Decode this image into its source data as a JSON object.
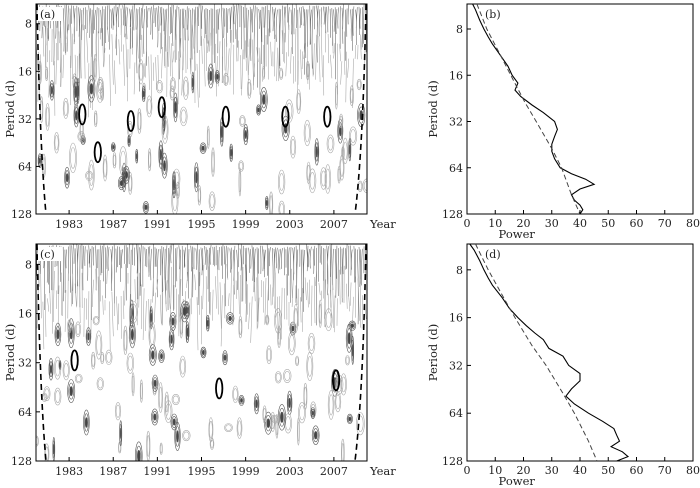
{
  "chart_data": [
    {
      "panel": "(a)",
      "type": "heatmap",
      "description": "wavelet power spectrum contour",
      "xlabel": "Year",
      "ylabel": "Period (d)",
      "y_scale": "log2",
      "y_reversed": true,
      "xlim": [
        1980,
        2010
      ],
      "ylim": [
        6,
        128
      ],
      "x_ticks": [
        1983,
        1987,
        1991,
        1995,
        1999,
        2003,
        2007
      ],
      "y_ticks": [
        8,
        16,
        32,
        64,
        128
      ],
      "cone_of_influence": true,
      "significant_regions_years": [
        1984.2,
        1985.6,
        1988.6,
        1991.4,
        1997.2,
        2002.6,
        2006.4
      ],
      "significant_regions_periods": [
        30,
        52,
        33,
        27,
        31,
        31,
        31
      ]
    },
    {
      "panel": "(b)",
      "type": "line",
      "description": "global wavelet spectrum",
      "xlabel": "Power",
      "ylabel": "Period (d)",
      "y_scale": "log2",
      "y_reversed": true,
      "xlim": [
        0,
        80
      ],
      "ylim": [
        5.5,
        128
      ],
      "x_ticks": [
        0,
        10,
        20,
        30,
        40,
        50,
        60,
        70,
        80
      ],
      "y_ticks": [
        8,
        16,
        32,
        64,
        128
      ],
      "series": [
        {
          "style": "solid",
          "period": [
            5.5,
            6,
            7,
            8,
            9,
            10,
            12,
            14,
            16,
            18,
            20,
            22,
            25,
            28,
            32,
            36,
            40,
            45,
            50,
            56,
            64,
            70,
            76,
            82,
            88,
            96,
            104,
            112,
            120,
            128
          ],
          "power": [
            2,
            3,
            4.5,
            6,
            7.5,
            9,
            12,
            14.5,
            16,
            18,
            17,
            19,
            23,
            27,
            31,
            32,
            31,
            30,
            30,
            31,
            33,
            37,
            42,
            45,
            40,
            37,
            38,
            40,
            41,
            40
          ]
        },
        {
          "style": "dashed",
          "period": [
            5.5,
            8,
            12,
            16,
            24,
            32,
            48,
            64,
            96,
            128
          ],
          "power": [
            3.5,
            7,
            12,
            15.5,
            20.5,
            24.5,
            30,
            33.5,
            37,
            40
          ]
        }
      ]
    },
    {
      "panel": "(c)",
      "type": "heatmap",
      "description": "wavelet power spectrum contour",
      "xlabel": "Year",
      "ylabel": "Period (d)",
      "y_scale": "log2",
      "y_reversed": true,
      "xlim": [
        1980,
        2010
      ],
      "ylim": [
        6,
        128
      ],
      "x_ticks": [
        1983,
        1987,
        1991,
        1995,
        1999,
        2003,
        2007
      ],
      "y_ticks": [
        8,
        16,
        32,
        64,
        128
      ],
      "cone_of_influence": true,
      "significant_regions_years": [
        1983.5,
        1996.6,
        2007.2
      ],
      "significant_regions_periods": [
        31,
        46,
        41
      ]
    },
    {
      "panel": "(d)",
      "type": "line",
      "description": "global wavelet spectrum",
      "xlabel": "Power",
      "ylabel": "Period (d)",
      "y_scale": "log2",
      "y_reversed": true,
      "xlim": [
        0,
        80
      ],
      "ylim": [
        5.5,
        128
      ],
      "x_ticks": [
        0,
        10,
        20,
        30,
        40,
        50,
        60,
        70,
        80
      ],
      "y_ticks": [
        8,
        16,
        32,
        64,
        128
      ],
      "series": [
        {
          "style": "solid",
          "period": [
            5.5,
            6,
            7,
            8,
            9,
            10,
            12,
            14,
            16,
            18,
            20,
            22,
            25,
            28,
            32,
            36,
            40,
            45,
            50,
            56,
            64,
            72,
            80,
            88,
            96,
            104,
            112,
            120,
            128
          ],
          "power": [
            1,
            2.5,
            4.5,
            6,
            7.5,
            9,
            12.5,
            15,
            18,
            21,
            24,
            27,
            29,
            34,
            36,
            40,
            40,
            37,
            35,
            38,
            43,
            48,
            52,
            53,
            54,
            51,
            55,
            57,
            53
          ]
        },
        {
          "style": "dashed",
          "period": [
            5.5,
            8,
            12,
            16,
            24,
            32,
            48,
            64,
            96,
            128
          ],
          "power": [
            3,
            7.5,
            13,
            17,
            23,
            28,
            34,
            38,
            43,
            46
          ]
        }
      ]
    }
  ]
}
